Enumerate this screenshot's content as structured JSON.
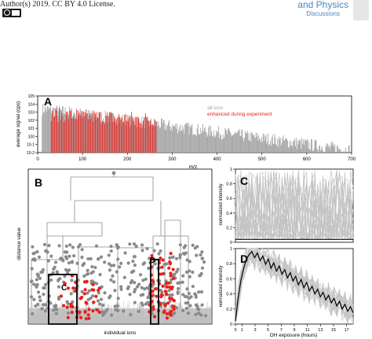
{
  "header": {
    "license_line": "Author(s) 2019. CC BY 4.0 License.",
    "journal_line": "and Physics",
    "journal_sub": "Discussions",
    "badge_icon": "cc-by-badge-icon",
    "logo_icon": "journal-logo-icon"
  },
  "chart_data": [
    {
      "panel": "A",
      "type": "bar",
      "xlabel": "m/z",
      "ylabel": "average signal (cps)",
      "scale_y": "log",
      "xlim": [
        0,
        700
      ],
      "ylim_exp": [
        -2,
        5
      ],
      "x_ticks": [
        "0",
        "100",
        "200",
        "300",
        "400",
        "500",
        "600",
        "700"
      ],
      "y_ticks": [
        "10-2",
        "10-1",
        "100",
        "101",
        "102",
        "103",
        "104",
        "105"
      ],
      "legend": [
        {
          "name": "all ions",
          "color": "#a6a6a6"
        },
        {
          "name": "enhanced during experiment",
          "color": "#e8201a"
        }
      ],
      "legend_position": "top-right",
      "enhanced_range_mz": [
        30,
        265
      ]
    },
    {
      "panel": "B",
      "type": "dendrogram",
      "xlabel": "individual ions",
      "ylabel": "distance value",
      "boxes": [
        {
          "label": "C"
        },
        {
          "label": "D"
        }
      ],
      "colors": {
        "cluster": "#8a8a8a",
        "highlight": "#e8201a"
      }
    },
    {
      "panel": "C",
      "type": "line",
      "ylabel": "normalized intensity",
      "ylim": [
        0,
        1.0
      ],
      "y_ticks": [
        "0",
        "0.2",
        "0.4",
        "0.6",
        "0.8",
        "1"
      ]
    },
    {
      "panel": "D",
      "type": "line",
      "xlabel": "OH exposure (hours)",
      "ylabel": "normalized intensity",
      "xlim": [
        0,
        18
      ],
      "ylim": [
        0,
        1.0
      ],
      "x_ticks": [
        "0",
        "1",
        "3",
        "5",
        "7",
        "9",
        "11",
        "13",
        "15",
        "17"
      ],
      "y_ticks": [
        "0",
        "0.2",
        "0.4",
        "0.6",
        "0.8",
        "1"
      ],
      "median": [
        0.04,
        0.35,
        0.58,
        0.74,
        0.86,
        0.92,
        0.96,
        0.88,
        0.94,
        0.84,
        0.9,
        0.79,
        0.86,
        0.74,
        0.81,
        0.7,
        0.77,
        0.66,
        0.72,
        0.61,
        0.68,
        0.57,
        0.63,
        0.52,
        0.59,
        0.48,
        0.55,
        0.44,
        0.5,
        0.4,
        0.46,
        0.36,
        0.42,
        0.32,
        0.38,
        0.28,
        0.34,
        0.24,
        0.3,
        0.2,
        0.26,
        0.17,
        0.23,
        0.15
      ]
    }
  ]
}
